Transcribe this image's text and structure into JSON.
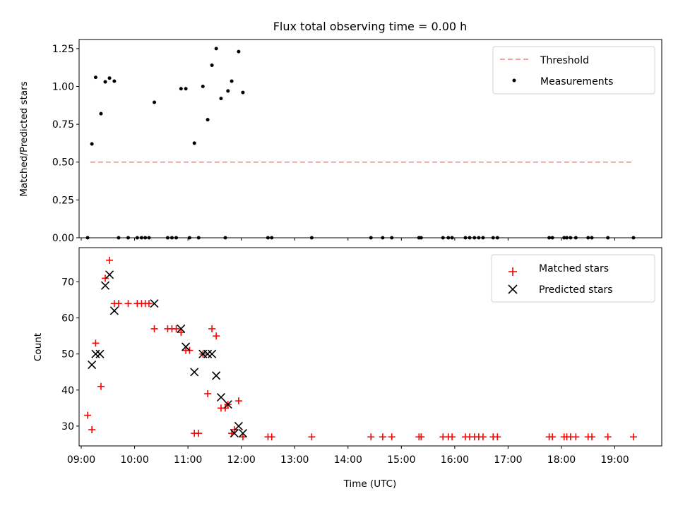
{
  "title": "Flux total observing time = 0.00 h",
  "colors": {
    "threshold": "#ff7f7f",
    "measurement": "#000000",
    "matched": "#ff0000",
    "predicted": "#000000",
    "axis": "#000000",
    "legend_border": "#cccccc"
  },
  "chart_data": [
    {
      "type": "scatter",
      "name": "ratio-panel",
      "title": "Flux total observing time = 0.00 h",
      "ylabel": "Matched/Predicted stars",
      "xlabel": "",
      "xlim": [
        8.96,
        19.88
      ],
      "ylim": [
        0.0,
        1.31
      ],
      "yticks": [
        0.0,
        0.25,
        0.5,
        0.75,
        1.0,
        1.25
      ],
      "ytick_labels": [
        "0.00",
        "0.25",
        "0.50",
        "0.75",
        "1.00",
        "1.25"
      ],
      "legend": {
        "position": "top-right",
        "entries": [
          {
            "label": "Threshold",
            "marker": "dashed-line"
          },
          {
            "label": "Measurements",
            "marker": "dot"
          }
        ]
      },
      "threshold": {
        "x": [
          9.17,
          19.35
        ],
        "y": 0.5
      },
      "series": [
        {
          "name": "Measurements",
          "x": [
            9.2,
            9.27,
            9.37,
            9.45,
            9.53,
            9.62,
            10.37,
            10.87,
            10.96,
            11.12,
            11.28,
            11.37,
            11.45,
            11.53,
            11.62,
            11.75,
            11.82,
            11.95,
            12.03,
            9.12,
            9.7,
            9.88,
            10.05,
            10.13,
            10.2,
            10.27,
            10.62,
            10.7,
            10.78,
            11.03,
            11.2,
            11.7,
            12.5,
            12.57,
            13.32,
            14.43,
            14.65,
            14.82,
            15.33,
            15.37,
            15.78,
            15.88,
            15.95,
            16.2,
            16.28,
            16.37,
            16.45,
            16.53,
            16.72,
            16.8,
            17.77,
            17.83,
            18.05,
            18.1,
            18.17,
            18.27,
            18.5,
            18.57,
            18.87,
            19.35
          ],
          "y": [
            0.62,
            1.06,
            0.82,
            1.03,
            1.055,
            1.035,
            0.895,
            0.985,
            0.985,
            0.625,
            1.0,
            0.78,
            1.14,
            1.25,
            0.92,
            0.97,
            1.035,
            1.23,
            0.96,
            0,
            0,
            0,
            0,
            0,
            0,
            0,
            0,
            0,
            0,
            0,
            0,
            0,
            0,
            0,
            0,
            0,
            0,
            0,
            0,
            0,
            0,
            0,
            0,
            0,
            0,
            0,
            0,
            0,
            0,
            0,
            0,
            0,
            0,
            0,
            0,
            0,
            0,
            0,
            0,
            0
          ]
        }
      ]
    },
    {
      "type": "scatter",
      "name": "count-panel",
      "title": "",
      "ylabel": "Count",
      "xlabel": "Time (UTC)",
      "xlim": [
        8.96,
        19.88
      ],
      "ylim": [
        24.5,
        79.5
      ],
      "xticks": [
        9,
        10,
        11,
        12,
        13,
        14,
        15,
        16,
        17,
        18,
        19
      ],
      "xtick_labels": [
        "09:00",
        "10:00",
        "11:00",
        "12:00",
        "13:00",
        "14:00",
        "15:00",
        "16:00",
        "17:00",
        "18:00",
        "19:00"
      ],
      "yticks": [
        30,
        40,
        50,
        60,
        70
      ],
      "ytick_labels": [
        "30",
        "40",
        "50",
        "60",
        "70"
      ],
      "legend": {
        "position": "top-right",
        "entries": [
          {
            "label": "Matched stars",
            "marker": "plus"
          },
          {
            "label": "Predicted stars",
            "marker": "x"
          }
        ]
      },
      "series": [
        {
          "name": "Matched stars",
          "x": [
            9.12,
            9.2,
            9.27,
            9.37,
            9.45,
            9.53,
            9.62,
            9.7,
            9.88,
            10.05,
            10.13,
            10.2,
            10.27,
            10.37,
            10.62,
            10.7,
            10.78,
            10.87,
            10.96,
            11.03,
            11.12,
            11.2,
            11.28,
            11.37,
            11.45,
            11.53,
            11.62,
            11.7,
            11.75,
            11.82,
            11.87,
            11.95,
            12.03,
            12.5,
            12.57,
            13.32,
            14.43,
            14.65,
            14.82,
            15.33,
            15.37,
            15.78,
            15.88,
            15.95,
            16.2,
            16.28,
            16.37,
            16.45,
            16.53,
            16.72,
            16.8,
            17.77,
            17.83,
            18.05,
            18.1,
            18.17,
            18.27,
            18.5,
            18.57,
            18.87,
            19.35
          ],
          "y": [
            33,
            29,
            53,
            41,
            71,
            76,
            64,
            64,
            64,
            64,
            64,
            64,
            64,
            57,
            57,
            57,
            57,
            56,
            51,
            51,
            28,
            28,
            50,
            39,
            57,
            55,
            35,
            35,
            36,
            28,
            29,
            37,
            27,
            27,
            27,
            27,
            27,
            27,
            27,
            27,
            27,
            27,
            27,
            27,
            27,
            27,
            27,
            27,
            27,
            27,
            27,
            27,
            27,
            27,
            27,
            27,
            27,
            27,
            27,
            27,
            27
          ]
        },
        {
          "name": "Predicted stars",
          "x": [
            9.2,
            9.27,
            9.35,
            9.45,
            9.53,
            9.62,
            10.37,
            10.87,
            10.96,
            11.12,
            11.28,
            11.37,
            11.45,
            11.53,
            11.62,
            11.75,
            11.87,
            11.95,
            12.03
          ],
          "y": [
            47,
            50,
            50,
            69,
            72,
            62,
            64,
            57,
            52,
            45,
            50,
            50,
            50,
            44,
            38,
            36,
            28,
            30,
            28
          ]
        }
      ]
    }
  ]
}
